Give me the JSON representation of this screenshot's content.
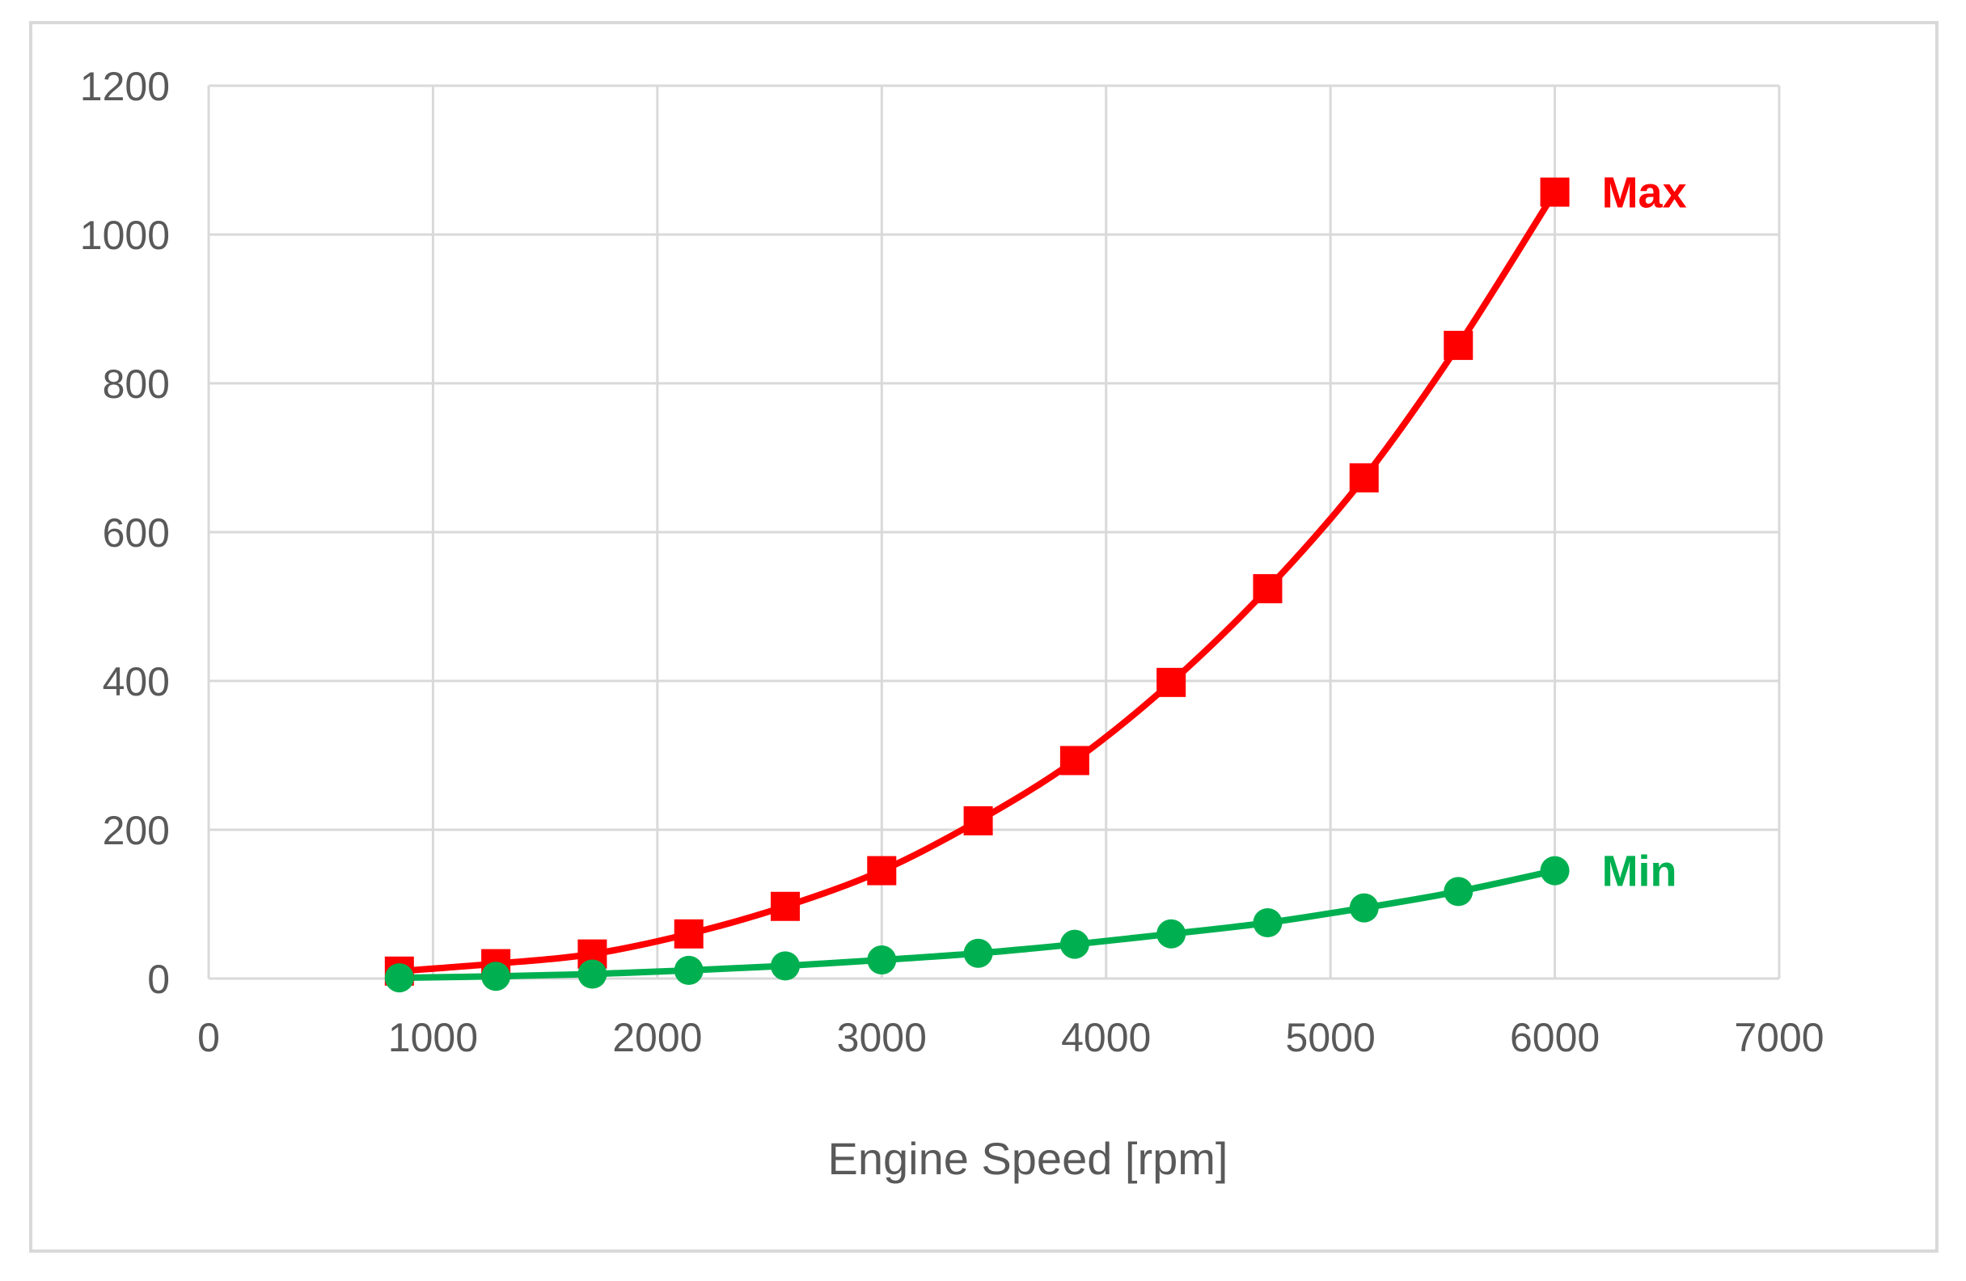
{
  "chart_data": {
    "type": "line",
    "title": "",
    "xlabel": "Engine Speed [rpm]",
    "ylabel": "",
    "xlim": [
      0,
      7000
    ],
    "ylim": [
      0,
      1200
    ],
    "xticks": [
      0,
      1000,
      2000,
      3000,
      4000,
      5000,
      6000,
      7000
    ],
    "yticks": [
      0,
      200,
      400,
      600,
      800,
      1000,
      1200
    ],
    "grid": true,
    "legend": "none",
    "series": [
      {
        "name": "Max",
        "color": "#ff0000",
        "marker": "square",
        "x": [
          850,
          1280,
          1710,
          2140,
          2570,
          3000,
          3430,
          3860,
          4290,
          4720,
          5150,
          5570,
          6000
        ],
        "y": [
          10,
          20,
          33,
          60,
          97,
          145,
          212,
          293,
          398,
          524,
          673,
          851,
          1057
        ]
      },
      {
        "name": "Min",
        "color": "#00b050",
        "marker": "circle",
        "x": [
          850,
          1280,
          1710,
          2140,
          2570,
          3000,
          3430,
          3860,
          4290,
          4720,
          5150,
          5570,
          6000
        ],
        "y": [
          1,
          3,
          6,
          11,
          17,
          25,
          34,
          46,
          60,
          75,
          95,
          117,
          145
        ]
      }
    ]
  }
}
